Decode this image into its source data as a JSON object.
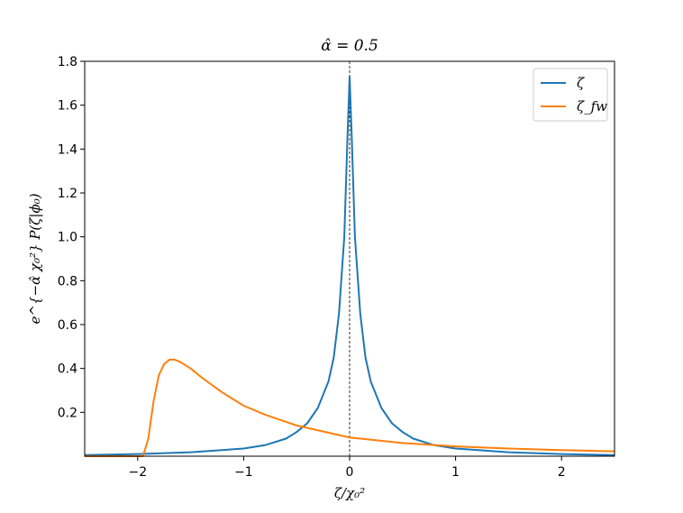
{
  "chart_data": {
    "type": "line",
    "title": "α̂ = 0.5",
    "xlabel": "ζ/χ₀²",
    "ylabel": "e^{−α̂ χ₀²} P(ζ|ϕ₀)",
    "xlim": [
      -2.5,
      2.5
    ],
    "ylim": [
      0.0,
      1.8
    ],
    "x_ticks": [
      -2,
      -1,
      0,
      1,
      2
    ],
    "x_tick_labels": [
      "−2",
      "−1",
      "0",
      "1",
      "2"
    ],
    "y_ticks": [
      0.2,
      0.4,
      0.6,
      0.8,
      1.0,
      1.2,
      1.4,
      1.6,
      1.8
    ],
    "y_tick_labels": [
      "0.2",
      "0.4",
      "0.6",
      "0.8",
      "1.0",
      "1.2",
      "1.4",
      "1.6",
      "1.8"
    ],
    "grid": false,
    "legend_position": "top-right",
    "vline": {
      "x": 0,
      "style": "dashed",
      "color": "#000000"
    },
    "series": [
      {
        "name": "ζ",
        "color": "#1f77b4",
        "x": [
          -2.5,
          -2.0,
          -1.5,
          -1.0,
          -0.8,
          -0.6,
          -0.5,
          -0.4,
          -0.3,
          -0.2,
          -0.15,
          -0.1,
          -0.05,
          -0.02,
          0.0,
          0.02,
          0.05,
          0.1,
          0.15,
          0.2,
          0.3,
          0.4,
          0.5,
          0.6,
          0.8,
          1.0,
          1.5,
          2.0,
          2.5
        ],
        "y": [
          0.005,
          0.01,
          0.018,
          0.035,
          0.05,
          0.08,
          0.11,
          0.15,
          0.22,
          0.34,
          0.45,
          0.65,
          1.0,
          1.45,
          1.73,
          1.45,
          1.0,
          0.65,
          0.45,
          0.34,
          0.22,
          0.15,
          0.11,
          0.08,
          0.05,
          0.035,
          0.018,
          0.01,
          0.005
        ]
      },
      {
        "name": "ζ_fw",
        "color": "#ff7f0e",
        "x": [
          -2.5,
          -1.95,
          -1.9,
          -1.85,
          -1.8,
          -1.75,
          -1.7,
          -1.65,
          -1.6,
          -1.5,
          -1.4,
          -1.2,
          -1.0,
          -0.8,
          -0.5,
          0.0,
          0.5,
          1.0,
          1.5,
          2.0,
          2.5
        ],
        "y": [
          0.0,
          0.0,
          0.08,
          0.25,
          0.37,
          0.42,
          0.44,
          0.44,
          0.43,
          0.4,
          0.36,
          0.29,
          0.23,
          0.19,
          0.14,
          0.085,
          0.06,
          0.045,
          0.035,
          0.028,
          0.022
        ]
      }
    ]
  }
}
